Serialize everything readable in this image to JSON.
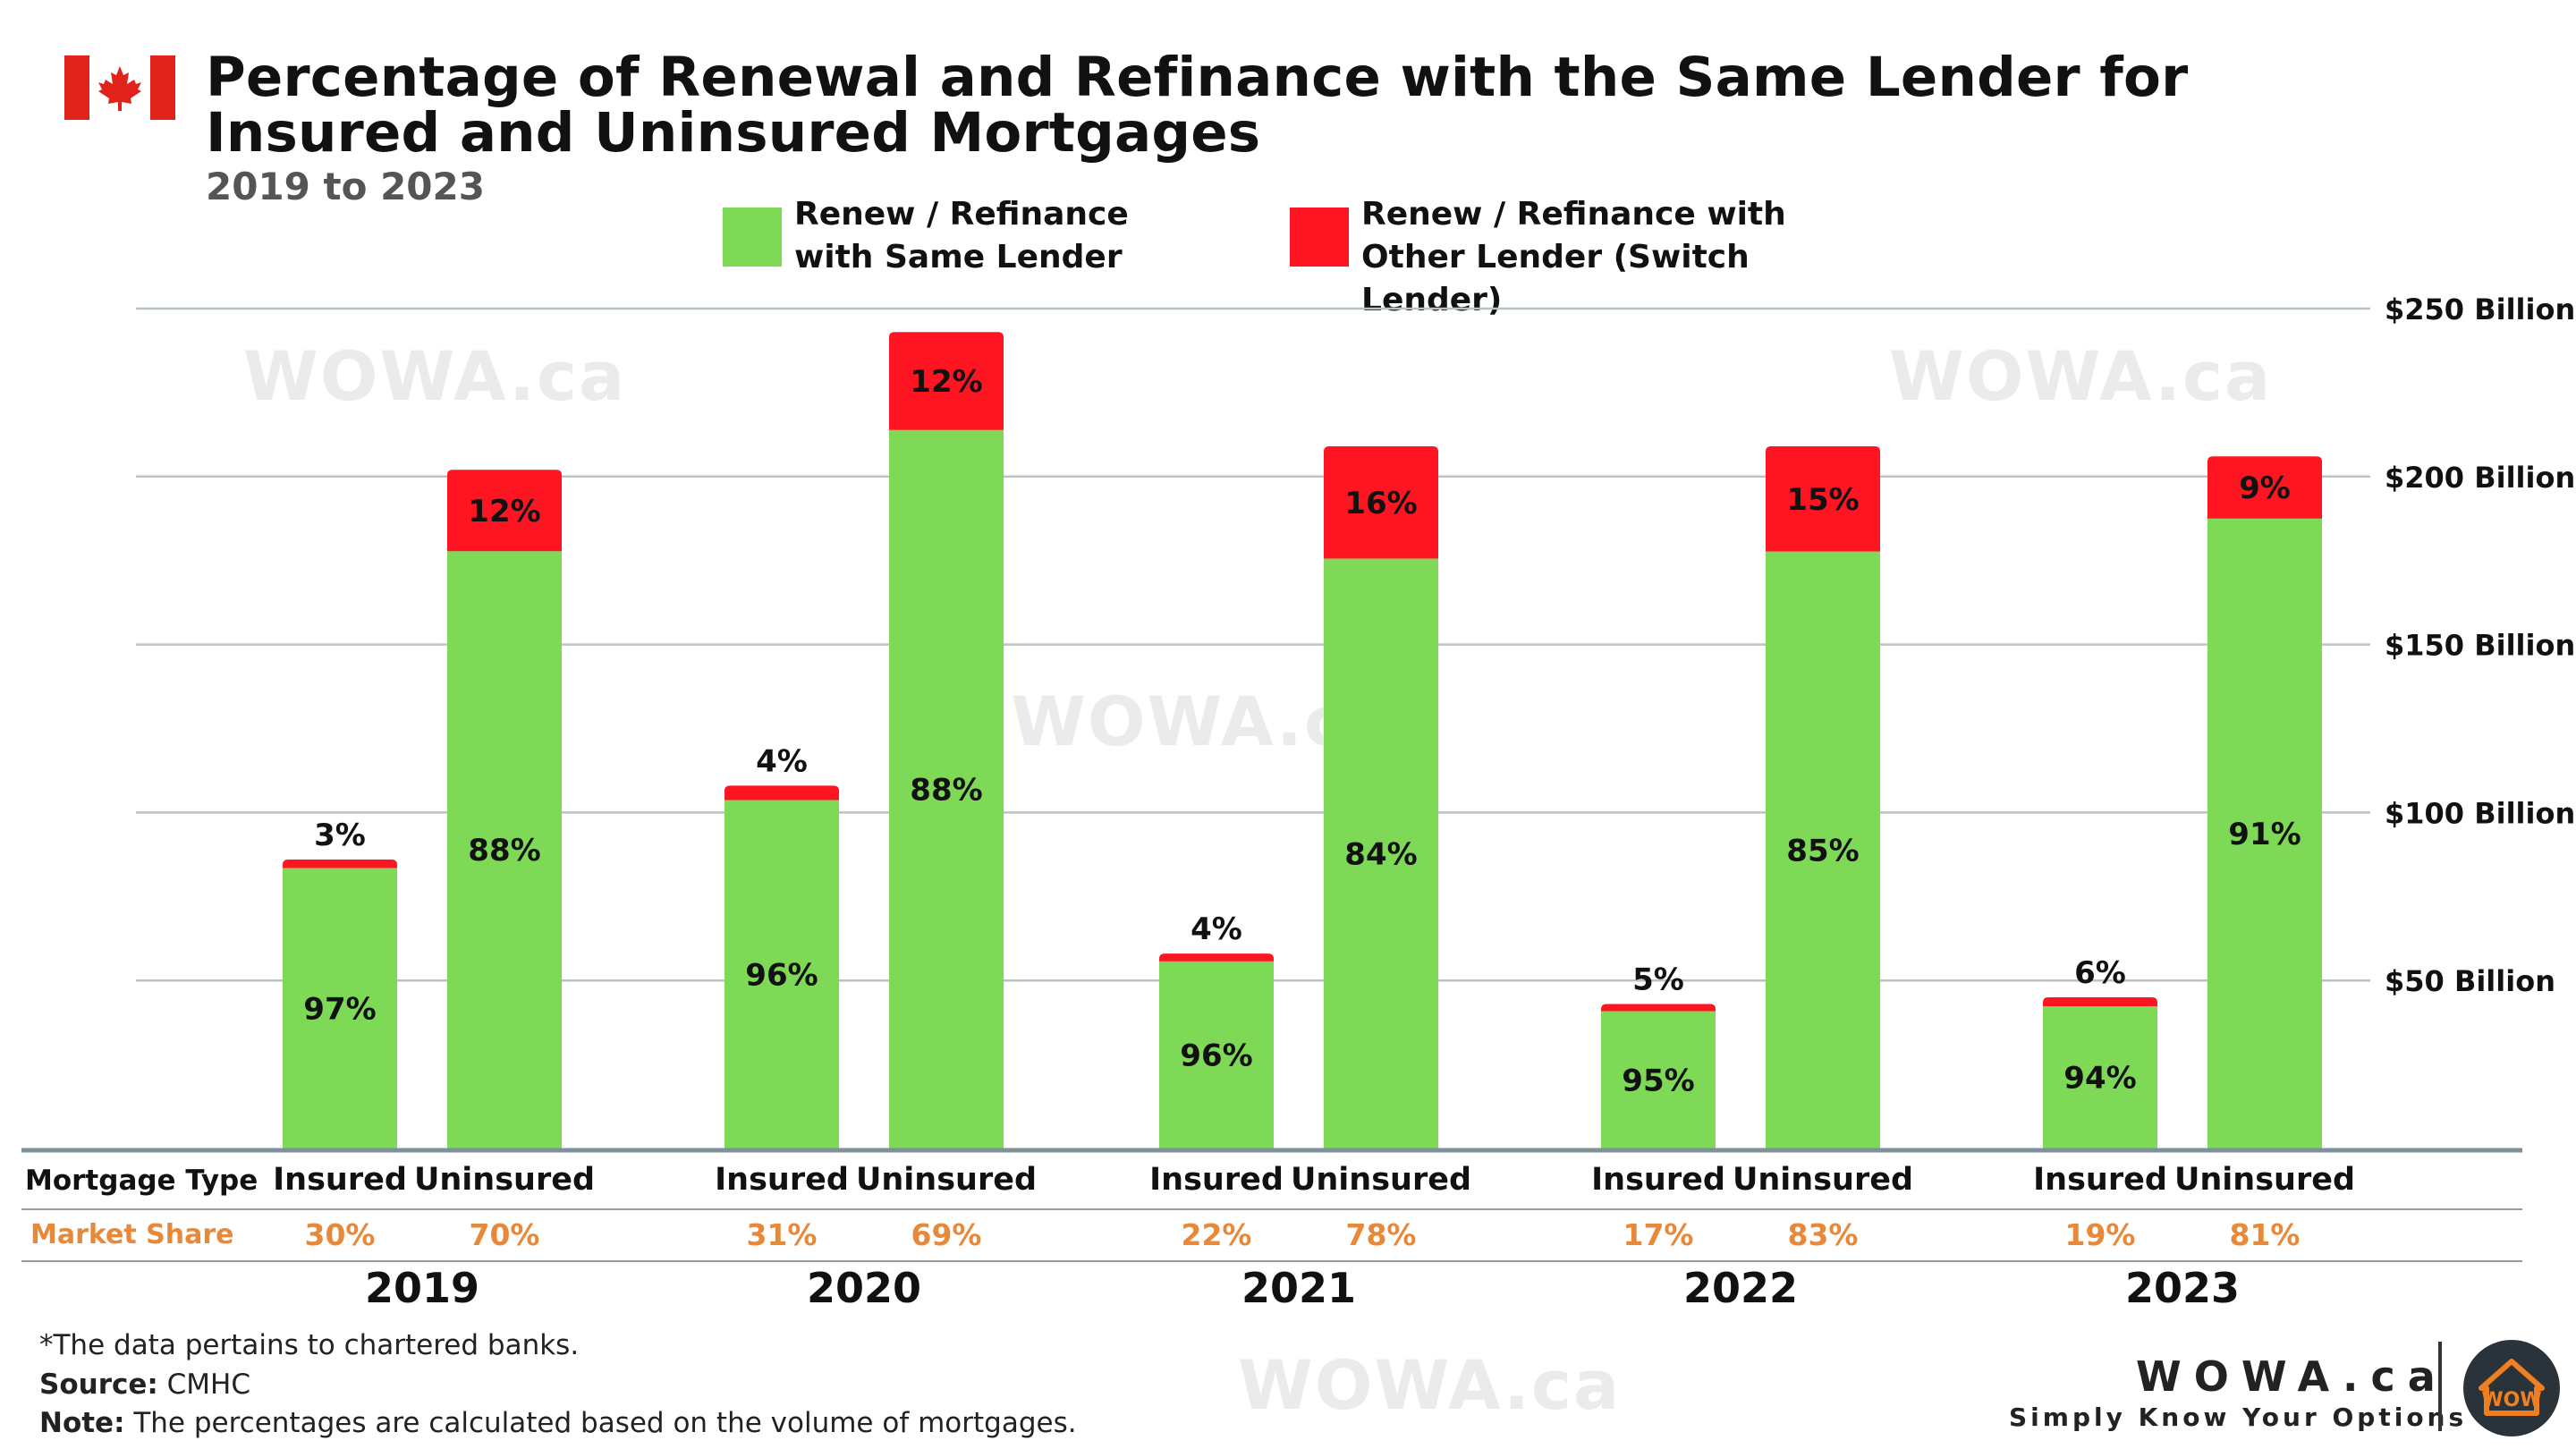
{
  "header": {
    "title": "Percentage of Renewal and Refinance with the Same Lender for Insured and Uninsured Mortgages",
    "subtitle": "2019 to 2023"
  },
  "legend": {
    "same_lender": "Renew / Refinance with Same Lender",
    "other_lender": "Renew / Refinance with Other Lender (Switch Lender)"
  },
  "colors": {
    "same_lender": "#7ED957",
    "other_lender": "#FF1522",
    "market_share_text": "#E8893A",
    "gridline": "#B8C4C8",
    "baseline": "#7E919A"
  },
  "watermark_text": "WOWA.ca",
  "table": {
    "row1_label": "Mortgage Type",
    "row2_label": "Market Share"
  },
  "chart_data": {
    "type": "bar",
    "stacked": true,
    "y_unit": "$ Billion",
    "ylim": [
      0,
      250
    ],
    "yticks": [
      "$50 Billion",
      "$100 Billion",
      "$150 Billion",
      "$200 Billion",
      "$250 Billion"
    ],
    "ytick_values": [
      50,
      100,
      150,
      200,
      250
    ],
    "groups": [
      {
        "year": "2019",
        "bars": [
          {
            "type": "Insured",
            "market_share": "30%",
            "total": 86,
            "same_pct": "97%",
            "other_pct": "3%"
          },
          {
            "type": "Uninsured",
            "market_share": "70%",
            "total": 202,
            "same_pct": "88%",
            "other_pct": "12%"
          }
        ]
      },
      {
        "year": "2020",
        "bars": [
          {
            "type": "Insured",
            "market_share": "31%",
            "total": 108,
            "same_pct": "96%",
            "other_pct": "4%"
          },
          {
            "type": "Uninsured",
            "market_share": "69%",
            "total": 243,
            "same_pct": "88%",
            "other_pct": "12%"
          }
        ]
      },
      {
        "year": "2021",
        "bars": [
          {
            "type": "Insured",
            "market_share": "22%",
            "total": 58,
            "same_pct": "96%",
            "other_pct": "4%"
          },
          {
            "type": "Uninsured",
            "market_share": "78%",
            "total": 209,
            "same_pct": "84%",
            "other_pct": "16%"
          }
        ]
      },
      {
        "year": "2022",
        "bars": [
          {
            "type": "Insured",
            "market_share": "17%",
            "total": 43,
            "same_pct": "95%",
            "other_pct": "5%"
          },
          {
            "type": "Uninsured",
            "market_share": "83%",
            "total": 209,
            "same_pct": "85%",
            "other_pct": "15%"
          }
        ]
      },
      {
        "year": "2023",
        "bars": [
          {
            "type": "Insured",
            "market_share": "19%",
            "total": 45,
            "same_pct": "94%",
            "other_pct": "6%"
          },
          {
            "type": "Uninsured",
            "market_share": "81%",
            "total": 206,
            "same_pct": "91%",
            "other_pct": "9%"
          }
        ]
      }
    ]
  },
  "footer": {
    "note1": "*The data pertains to chartered banks.",
    "source_label": "Source:",
    "source_value": "CMHC",
    "note_label": "Note:",
    "note_value": "The percentages are calculated based on the volume of mortgages."
  },
  "brand": {
    "name": "WOWA.ca",
    "tagline": "Simply Know Your Options",
    "logo_text": "WOW"
  }
}
